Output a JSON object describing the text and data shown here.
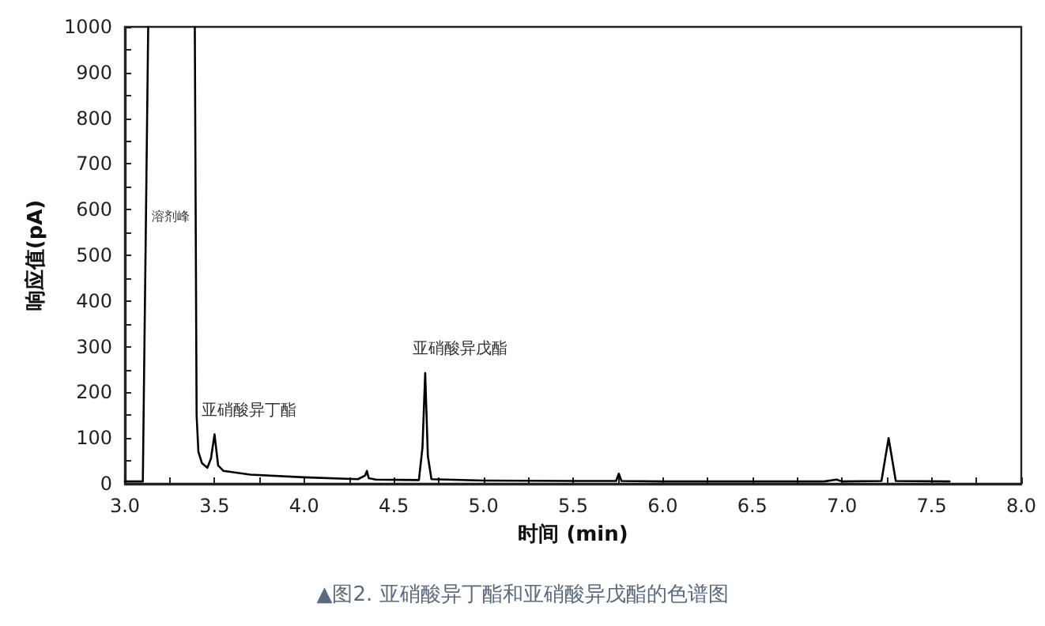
{
  "chart_data": {
    "type": "line",
    "xlabel": "时间 (min)",
    "ylabel": "响应值(pA)",
    "xlim": [
      3.0,
      8.0
    ],
    "ylim": [
      0,
      1000
    ],
    "xticks": [
      {
        "value": 3.0,
        "label": "3.0"
      },
      {
        "value": 3.25,
        "label": null
      },
      {
        "value": 3.5,
        "label": "3.5"
      },
      {
        "value": 3.75,
        "label": null
      },
      {
        "value": 4.0,
        "label": "4.0"
      },
      {
        "value": 4.25,
        "label": null
      },
      {
        "value": 4.5,
        "label": "4.5"
      },
      {
        "value": 4.75,
        "label": null
      },
      {
        "value": 5.0,
        "label": "5.0"
      },
      {
        "value": 5.25,
        "label": null
      },
      {
        "value": 5.5,
        "label": "5.5"
      },
      {
        "value": 5.75,
        "label": null
      },
      {
        "value": 6.0,
        "label": "6.0"
      },
      {
        "value": 6.25,
        "label": null
      },
      {
        "value": 6.5,
        "label": "6.5"
      },
      {
        "value": 6.75,
        "label": null
      },
      {
        "value": 7.0,
        "label": "7.0"
      },
      {
        "value": 7.25,
        "label": null
      },
      {
        "value": 7.5,
        "label": "7.5"
      },
      {
        "value": 7.75,
        "label": null
      },
      {
        "value": 8.0,
        "label": "8.0"
      }
    ],
    "yticks": [
      0,
      {
        "value": 50,
        "label": null
      },
      100,
      {
        "value": 150,
        "label": null
      },
      200,
      {
        "value": 250,
        "label": null
      },
      300,
      {
        "value": 350,
        "label": null
      },
      400,
      {
        "value": 450,
        "label": null
      },
      500,
      {
        "value": 550,
        "label": null
      },
      600,
      {
        "value": 650,
        "label": null
      },
      700,
      {
        "value": 750,
        "label": null
      },
      800,
      {
        "value": 850,
        "label": null
      },
      900,
      {
        "value": 950,
        "label": null
      },
      1000
    ],
    "grid": false,
    "marker": "none",
    "line_style": "solid",
    "series": [
      {
        "color": "#000000",
        "x": [
          3.0,
          3.1,
          3.115,
          3.13,
          3.26,
          3.39,
          3.4,
          3.41,
          3.43,
          3.46,
          3.48,
          3.5,
          3.52,
          3.55,
          3.7,
          4.0,
          4.3,
          4.34,
          4.35,
          4.36,
          4.4,
          4.64,
          4.66,
          4.675,
          4.69,
          4.71,
          5.0,
          5.5,
          5.74,
          5.755,
          5.77,
          6.0,
          6.9,
          6.97,
          7.0,
          7.22,
          7.26,
          7.3,
          7.6
        ],
        "values": [
          5,
          5,
          500,
          1000,
          null,
          1000,
          150,
          70,
          45,
          35,
          55,
          108,
          40,
          28,
          20,
          14,
          10,
          18,
          28,
          12,
          9,
          8,
          80,
          242,
          60,
          10,
          7,
          6,
          6,
          22,
          6,
          5,
          5,
          9,
          5,
          6,
          100,
          6,
          5
        ]
      }
    ],
    "annotations": [
      "溶剂峰",
      {
        "text": "亚硝酸异丁酯",
        "x": 3.5,
        "y": 108
      },
      {
        "text": "亚硝酸异戊酯",
        "x": 4.675,
        "y": 242
      },
      "▲图2. 亚硝酸异丁酯和亚硝酸异戊酯的色谱图"
    ]
  }
}
